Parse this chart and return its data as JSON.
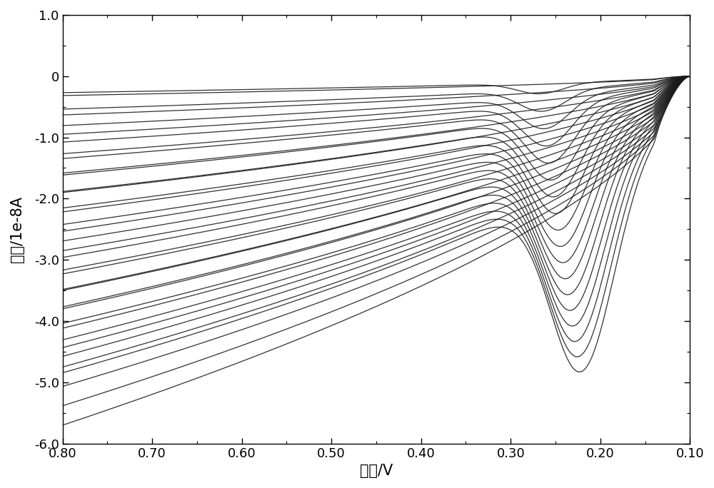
{
  "title": "",
  "xlabel": "电压/V",
  "ylabel": "电流/1e-8A",
  "xlim": [
    0.8,
    0.1
  ],
  "ylim": [
    -6.0,
    1.0
  ],
  "xticks": [
    0.8,
    0.7,
    0.6,
    0.5,
    0.4,
    0.3,
    0.2,
    0.1
  ],
  "yticks": [
    1.0,
    0,
    -1.0,
    -2.0,
    -3.0,
    -4.0,
    -5.0,
    -6.0
  ],
  "n_curves": 18,
  "background_color": "#ffffff",
  "line_color": "#1a1a1a",
  "linewidth": 0.9
}
